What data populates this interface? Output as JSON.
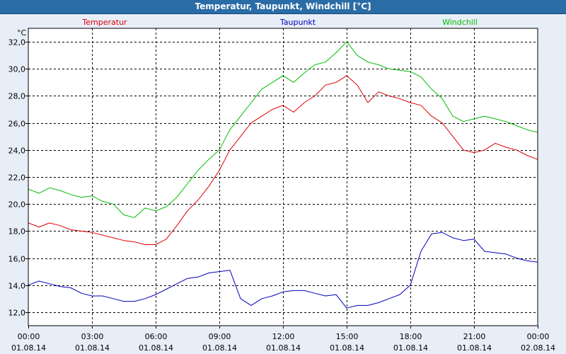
{
  "window": {
    "title": "Temperatur, Taupunkt, Windchill [°C]"
  },
  "colors": {
    "background": "#e8eef8",
    "plot_background": "#ffffff",
    "title_bar": "#2a6ca6",
    "temperatur": "#dd0000",
    "taupunkt": "#0000bb",
    "windchill": "#00bb00",
    "grid": "#000000"
  },
  "chart_data": {
    "type": "line",
    "title": "Temperatur, Taupunkt, Windchill [°C]",
    "ylabel": "°C",
    "xlabel": "",
    "ylim": [
      11,
      33
    ],
    "xlim": [
      0,
      24
    ],
    "y_ticks": [
      12,
      14,
      16,
      18,
      20,
      22,
      24,
      26,
      28,
      30,
      32
    ],
    "y_tick_labels": [
      "12,0",
      "14,0",
      "16,0",
      "18,0",
      "20,0",
      "22,0",
      "24,0",
      "26,0",
      "28,0",
      "30,0",
      "32,0"
    ],
    "x_ticks": [
      0,
      3,
      6,
      9,
      12,
      15,
      18,
      21,
      24
    ],
    "x_tick_labels": [
      {
        "time": "00:00",
        "date": "01.08.14"
      },
      {
        "time": "03:00",
        "date": "01.08.14"
      },
      {
        "time": "06:00",
        "date": "01.08.14"
      },
      {
        "time": "09:00",
        "date": "01.08.14"
      },
      {
        "time": "12:00",
        "date": "01.08.14"
      },
      {
        "time": "15:00",
        "date": "01.08.14"
      },
      {
        "time": "18:00",
        "date": "01.08.14"
      },
      {
        "time": "21:00",
        "date": "01.08.14"
      },
      {
        "time": "00:00",
        "date": "02.08.14"
      }
    ],
    "grid": true,
    "legend_placement": "top",
    "x_hours": [
      0,
      0.5,
      1,
      1.5,
      2,
      2.5,
      3,
      3.5,
      4,
      4.5,
      5,
      5.5,
      6,
      6.5,
      7,
      7.5,
      8,
      8.5,
      9,
      9.5,
      10,
      10.5,
      11,
      11.5,
      12,
      12.5,
      13,
      13.5,
      14,
      14.5,
      15,
      15.5,
      16,
      16.5,
      17,
      17.5,
      18,
      18.5,
      19,
      19.5,
      20,
      20.5,
      21,
      21.5,
      22,
      22.5,
      23,
      23.5,
      24
    ],
    "series": [
      {
        "name": "Temperatur",
        "color": "#dd0000",
        "values": [
          18.6,
          18.3,
          18.6,
          18.4,
          18.1,
          18.0,
          17.9,
          17.7,
          17.5,
          17.3,
          17.2,
          17.0,
          17.0,
          17.4,
          18.4,
          19.5,
          20.3,
          21.3,
          22.5,
          24.0,
          25.0,
          26.0,
          26.5,
          27.0,
          27.3,
          26.8,
          27.5,
          28.0,
          28.8,
          29.0,
          29.5,
          28.8,
          27.5,
          28.3,
          28.0,
          27.8,
          27.5,
          27.3,
          26.5,
          26.0,
          25.0,
          24.0,
          23.8,
          24.0,
          24.5,
          24.2,
          24.0,
          23.6,
          23.3
        ]
      },
      {
        "name": "Taupunkt",
        "color": "#0000bb",
        "values": [
          14.0,
          14.3,
          14.1,
          13.9,
          13.8,
          13.4,
          13.2,
          13.2,
          13.0,
          12.8,
          12.8,
          13.0,
          13.3,
          13.7,
          14.1,
          14.5,
          14.6,
          14.9,
          15.0,
          15.1,
          13.0,
          12.5,
          13.0,
          13.2,
          13.5,
          13.6,
          13.6,
          13.4,
          13.2,
          13.3,
          12.3,
          12.5,
          12.5,
          12.7,
          13.0,
          13.3,
          14.0,
          16.5,
          17.8,
          17.9,
          17.5,
          17.3,
          17.4,
          16.5,
          16.4,
          16.3,
          16.0,
          15.8,
          15.7
        ]
      },
      {
        "name": "Windchill",
        "color": "#00bb00",
        "values": [
          21.1,
          20.8,
          21.2,
          21.0,
          20.7,
          20.5,
          20.6,
          20.2,
          20.0,
          19.2,
          19.0,
          19.7,
          19.5,
          19.8,
          20.5,
          21.5,
          22.5,
          23.3,
          24.0,
          25.5,
          26.5,
          27.5,
          28.5,
          29.0,
          29.5,
          29.0,
          29.7,
          30.3,
          30.5,
          31.2,
          32.0,
          31.0,
          30.5,
          30.3,
          30.0,
          29.9,
          29.8,
          29.4,
          28.5,
          27.8,
          26.5,
          26.1,
          26.3,
          26.5,
          26.3,
          26.1,
          25.8,
          25.5,
          25.3
        ]
      }
    ]
  }
}
